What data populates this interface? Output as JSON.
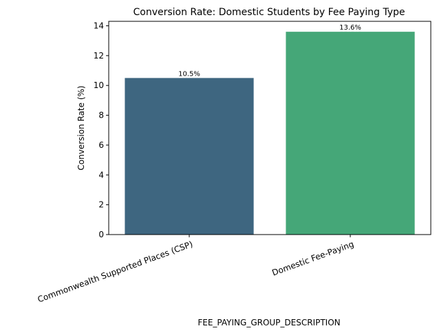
{
  "chart_data": {
    "type": "bar",
    "title": "Conversion Rate: Domestic Students by Fee Paying Type",
    "xlabel": "FEE_PAYING_GROUP_DESCRIPTION",
    "ylabel": "Conversion Rate (%)",
    "categories": [
      "Commonwealth Supported Places (CSP)",
      "Domestic Fee-Paying"
    ],
    "values": [
      10.5,
      13.6
    ],
    "data_labels": [
      "10.5%",
      "13.6%"
    ],
    "colors": [
      "#3e6680",
      "#45a778"
    ],
    "ylim": [
      0,
      14.3
    ],
    "yticks": [
      0,
      2,
      4,
      6,
      8,
      10,
      12,
      14
    ],
    "grid": false,
    "legend": "none"
  }
}
